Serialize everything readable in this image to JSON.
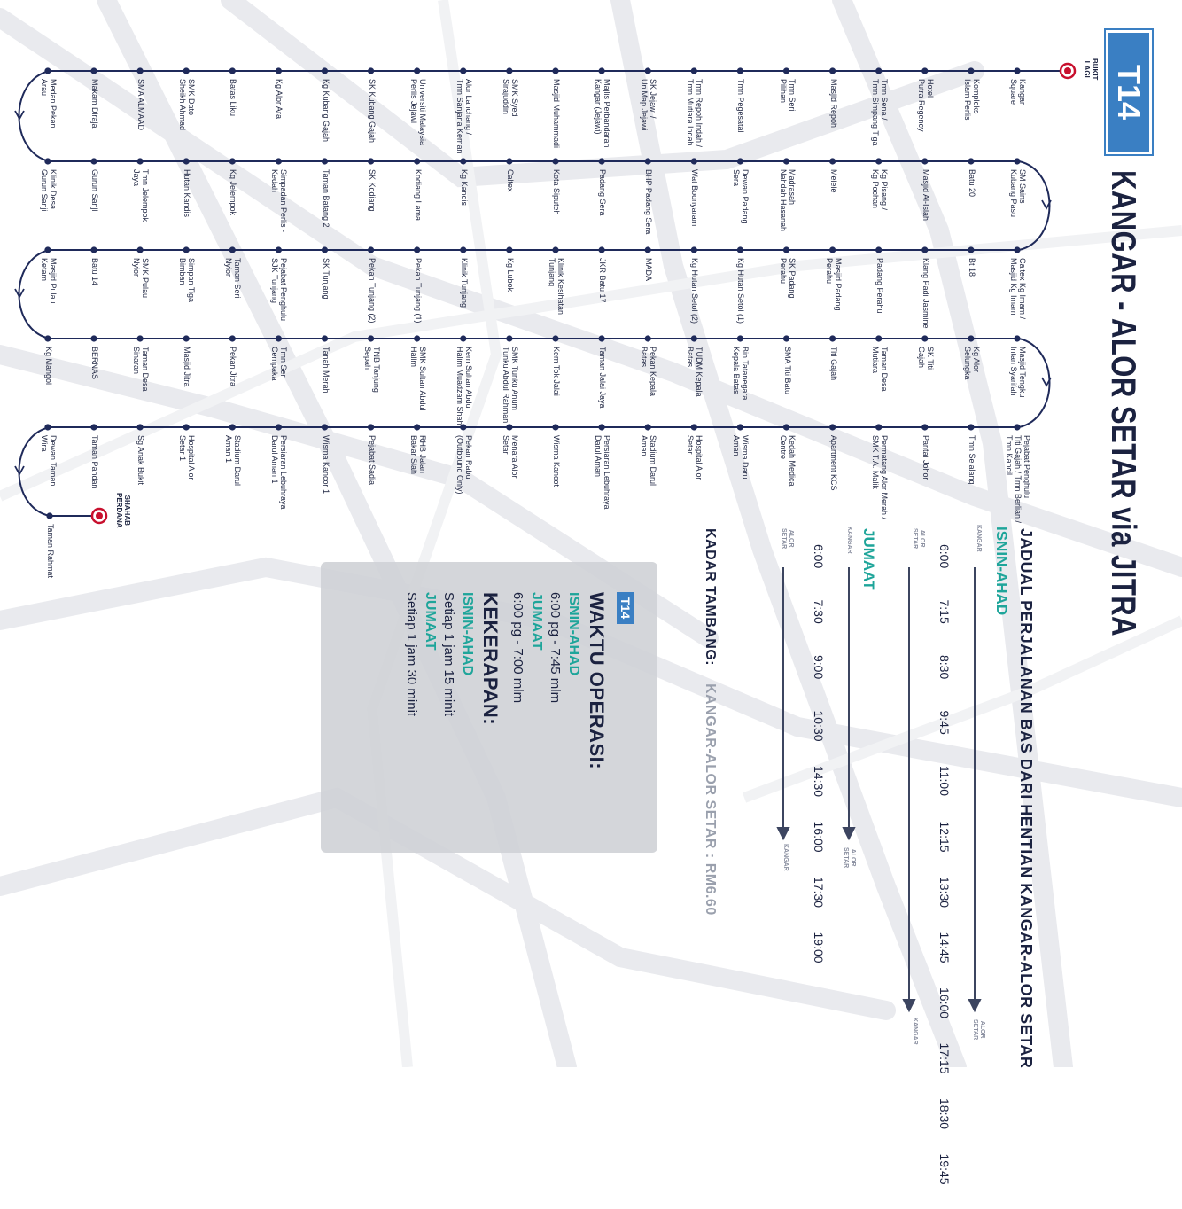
{
  "route_code": "T14",
  "title": "KANGAR - ALOR SETAR via JITRA",
  "terminals": {
    "start": "BUKIT\nLAGI",
    "end": "SHAHAB\nPERDANA"
  },
  "rows": [
    [
      "Kangar\nSquare",
      "Kompleks\nIslam Perlis",
      "Hotel\nPutra Regency",
      "Tmn Sena /\nTmn Simpang Tiga",
      "Masjid Repoh",
      "Tmn Seri\nPilihan",
      "Tmn Pegesatal",
      "Tmn Repoh Indah /\nTmn Mutiara Indah",
      "SK Jejawi /\nUniMap Jejawi",
      "Majlis Perbandaran\nKangar (Jejawi)",
      "Masjid Muhammadi",
      "SMK Syed\nSirajuddin",
      "Alor Lanchang /\nTmn Sanjana Keman",
      "Universiti Malaysia\nPerlis Jejawi",
      "SK Kubang Gajah",
      "Kg Kubang Gajah",
      "Kg Alor Ara",
      "Batas Liku",
      "SMK Dato\nSheikh Ahmad",
      "SMA ALMAAD",
      "Makam Diraja",
      "Medan Pekan\nArau"
    ],
    [
      "SM Sains\nKubang Pasu",
      "Batu 20",
      "Masjid Al-Islah",
      "Kg Pisang /\nKg Pochan",
      "Melele",
      "Madrasah\nNahdah Hasanah",
      "Dewan Padang\nSera",
      "Wat Boonyaram",
      "BHP Padang Sera",
      "Padang Sera",
      "Kota Siputeh",
      "Caltex",
      "Kg Kandis",
      "Kodiang Lama",
      "SK Kodiang",
      "Taman Batang 2",
      "Simpadan Perlis -\nKedah",
      "Kg Jelempok",
      "Hutan Kandis",
      "Tmn Jelempok\nJaya",
      "Gurun Sanji",
      "Klinik Desa\nGurun Sanji"
    ],
    [
      "Caltex Kg Imam /\nMasjid Kg Imam",
      "Bt 18",
      "Klang Padi Jasmine",
      "Padang Perahu",
      "Masjid Padang\nPerahu",
      "SK Padang\nPerahu",
      "Kg Hutan Setol (1)",
      "Kg Hutan Setol (2)",
      "MADA",
      "JKR Batu 17",
      "Klinik Kesihatan\nTunjang",
      "Kg Lubok",
      "Klinik Tunjang",
      "Pekan Tunjang (1)",
      "Pekan Tunjang (2)",
      "SK Tunjang",
      "Pejabat Penghulu\nSJK Tunjang",
      "Taman Seri\nNyior",
      "Simpan Tiga\nBimban",
      "SMK Pulau\nNyior",
      "Batu 14",
      "Masjid Pulau\nKetam"
    ],
    [
      "Masjid Tengku\nIntan Syarifah",
      "Kg Alor\nSelungka",
      "SK Titi\nGajah",
      "Taman Desa\nMutiara",
      "Titi Gajah",
      "SMA Titi Batu",
      "Bin Tatanegara\nKepala Batas",
      "TUDM Kepala\nBatas",
      "Pekan Kepala\nBatas",
      "Taman Jalai Jaya",
      "Kem Tok Jalai",
      "SMK Tunku Anum\nTunku Abdul Rahman",
      "Kem Sultan Abdul\nHalim Muadzam Shah",
      "SMK Sultan Abdul\nHalim",
      "TNB Tanjung\nSepah",
      "Tanah Merah",
      "Tmn Seri\nCempaka",
      "Pekan Jitra",
      "Masjid Jitra",
      "Taman Desa\nSinaran",
      "BERNAS",
      "Kg Mangol"
    ],
    [
      "Pejabat Penghulu\nTiti Gajah / Tmn Berlian /\nTmn Kancil",
      "Tmn Selalang",
      "Pantai Johor",
      "Permatang Alor Merah /\nSMK T.A. Malik",
      "Apartment KCS",
      "Kedah Medical\nCentre",
      "Wisma Darul\nAman",
      "Hospital Alor\nSetar",
      "Stadium Darul\nAman",
      "Persiaran Lebuhraya\nDarul Aman",
      "Wisma Kancot",
      "Menara Alor\nSetar",
      "Pekan Rabu\n(Outbound Only)",
      "RHB Jalan\nBakar Siah",
      "Pejabat Sadia",
      "Wisma Kancor 1",
      "Persiaran Lebuhraya\nDarul Aman 1",
      "Stadium Darul\nAman 1",
      "Hospital Alor\nSetar 1",
      "Sg Anak Bukit",
      "Taman Pandan",
      "Dewan Taman\nWira"
    ],
    [
      "Taman Rahmat"
    ]
  ],
  "schedule": {
    "title": "JADUAL PERJALANAN BAS DARI HENTIAN KANGAR-ALOR SETAR",
    "weekday_label": "ISNIN-AHAD",
    "weekday": {
      "from": "KANGAR",
      "to": "ALOR\nSETAR",
      "out": [
        "6:00",
        "7:15",
        "8:30",
        "9:45",
        "11:00",
        "12:15",
        "13:30",
        "14:45",
        "16:00",
        "17:15",
        "18:30",
        "19:45"
      ],
      "from_back": "ALOR\nSETAR",
      "to_back": "KANGAR"
    },
    "friday_label": "JUMAAT",
    "friday": {
      "from": "KANGAR",
      "to": "ALOR\nSETAR",
      "out": [
        "6:00",
        "7:30",
        "9:00",
        "10:30",
        "14:30",
        "16:00",
        "17:30",
        "19:00"
      ],
      "from_back": "ALOR\nSETAR",
      "to_back": "KANGAR"
    }
  },
  "fare": {
    "label": "KADAR TAMBANG:",
    "value": "KANGAR-ALOR SETAR : RM6.60"
  },
  "info": {
    "badge": "T14",
    "hours_title": "WAKTU OPERASI:",
    "hours_weekday_label": "ISNIN-AHAD",
    "hours_weekday": "6:00 pg - 7:45 mlm",
    "hours_friday_label": "JUMAAT",
    "hours_friday": "6:00 pg - 7:00 mlm",
    "freq_title": "KEKERAPAN:",
    "freq_weekday_label": "ISNIN-AHAD",
    "freq_weekday": "Setiap 1 jam 15 minit",
    "freq_friday_label": "JUMAAT",
    "freq_friday": "Setiap 1 jam 30 minit"
  },
  "colors": {
    "line": "#1f2a5a",
    "accent": "#1ea59a",
    "badge": "#3a7fc3",
    "terminal": "#c8102e"
  }
}
